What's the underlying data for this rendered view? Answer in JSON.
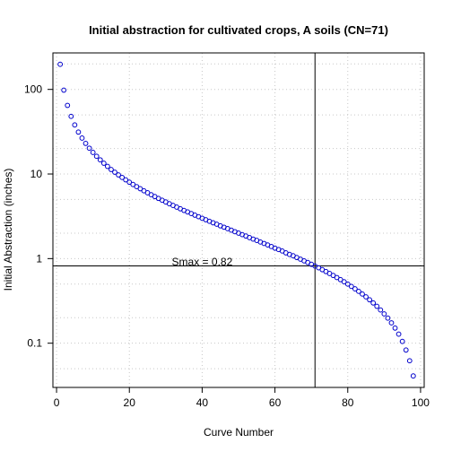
{
  "chart_data": {
    "type": "scatter",
    "title": "Initial abstraction for cultivated crops, A soils (CN=71)",
    "xlabel": "Curve Number",
    "ylabel": "Initial Abstraction (inches)",
    "xlim": [
      -1,
      101
    ],
    "ylim": [
      0.03,
      270
    ],
    "y_scale": "log",
    "x_ticks": [
      0,
      20,
      40,
      60,
      80,
      100
    ],
    "x_tick_labels": [
      "0",
      "20",
      "40",
      "60",
      "80",
      "100"
    ],
    "y_ticks": [
      0.1,
      1,
      10,
      100
    ],
    "y_tick_labels": [
      "0.1",
      "1",
      "10",
      "100"
    ],
    "grid": true,
    "grid_style": "dotted",
    "marker": "open-circle",
    "marker_color": "#0000cc",
    "reference_lines": {
      "vertical_x": 71,
      "horizontal_y": 0.82,
      "color": "#000000"
    },
    "annotation": {
      "text": "Smax = 0.82",
      "x": 40,
      "y": 0.82
    },
    "series": [
      {
        "x": [
          1,
          2,
          3,
          4,
          5,
          6,
          7,
          8,
          9,
          10,
          11,
          12,
          13,
          14,
          15,
          16,
          17,
          18,
          19,
          20,
          21,
          22,
          23,
          24,
          25,
          26,
          27,
          28,
          29,
          30,
          31,
          32,
          33,
          34,
          35,
          36,
          37,
          38,
          39,
          40,
          41,
          42,
          43,
          44,
          45,
          46,
          47,
          48,
          49,
          50,
          51,
          52,
          53,
          54,
          55,
          56,
          57,
          58,
          59,
          60,
          61,
          62,
          63,
          64,
          65,
          66,
          67,
          68,
          69,
          70,
          71,
          72,
          73,
          74,
          75,
          76,
          77,
          78,
          79,
          80,
          81,
          82,
          83,
          84,
          85,
          86,
          87,
          88,
          89,
          90,
          91,
          92,
          93,
          94,
          95,
          96,
          97,
          98
        ],
        "y": [
          198,
          98,
          64.7,
          48,
          38,
          31.3,
          26.6,
          23,
          20.2,
          18,
          16.2,
          14.7,
          13.4,
          12.3,
          11.3,
          10.5,
          9.76,
          9.11,
          8.53,
          8,
          7.52,
          7.09,
          6.7,
          6.33,
          6,
          5.69,
          5.41,
          5.14,
          4.9,
          4.67,
          4.45,
          4.25,
          4.06,
          3.88,
          3.71,
          3.56,
          3.41,
          3.26,
          3.13,
          3,
          2.88,
          2.76,
          2.65,
          2.55,
          2.44,
          2.35,
          2.26,
          2.17,
          2.08,
          2,
          1.92,
          1.85,
          1.77,
          1.7,
          1.64,
          1.57,
          1.51,
          1.45,
          1.39,
          1.33,
          1.28,
          1.23,
          1.17,
          1.12,
          1.08,
          1.03,
          0.985,
          0.941,
          0.899,
          0.857,
          0.817,
          0.778,
          0.74,
          0.703,
          0.667,
          0.632,
          0.597,
          0.564,
          0.532,
          0.5,
          0.469,
          0.439,
          0.41,
          0.381,
          0.353,
          0.326,
          0.299,
          0.273,
          0.247,
          0.222,
          0.198,
          0.174,
          0.151,
          0.128,
          0.105,
          0.083,
          0.062,
          0.041
        ]
      }
    ]
  }
}
